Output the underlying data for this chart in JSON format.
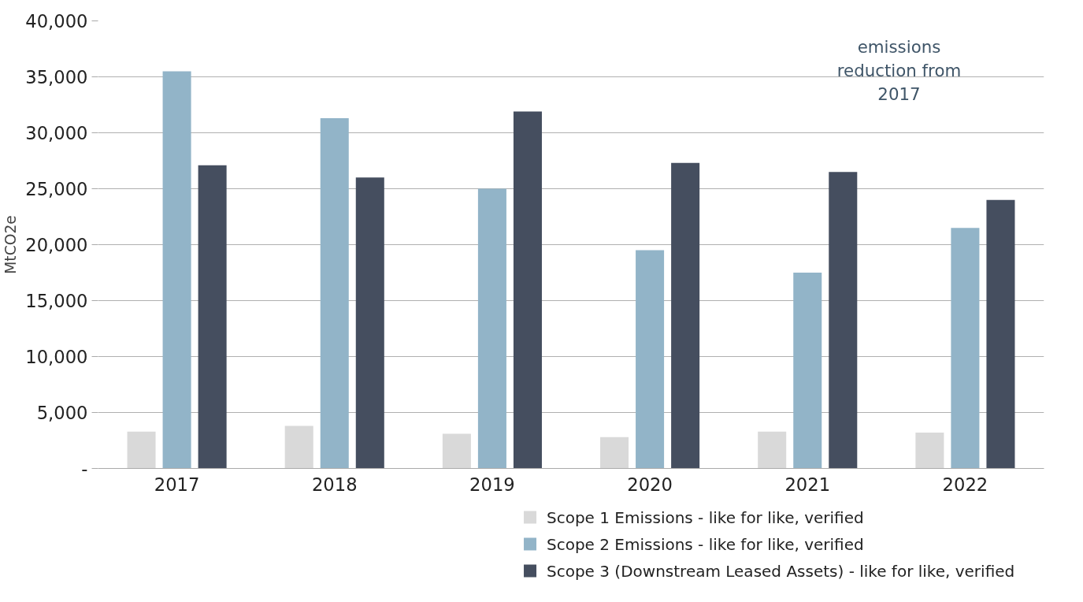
{
  "chart_data": {
    "type": "bar",
    "ylabel": "MtCO2e",
    "categories": [
      "2017",
      "2018",
      "2019",
      "2020",
      "2021",
      "2022"
    ],
    "series": [
      {
        "name": "Scope 1 Emissions - like for like, verified",
        "color": "#d9d9d9",
        "values": [
          3300,
          3800,
          3100,
          2800,
          3300,
          3200
        ]
      },
      {
        "name": "Scope 2 Emissions - like for like, verified",
        "color": "#92b4c8",
        "values": [
          35500,
          31300,
          25000,
          19500,
          17500,
          21500
        ]
      },
      {
        "name": "Scope 3 (Downstream Leased Assets) - like for like, verified",
        "color": "#454e5f",
        "values": [
          27100,
          26000,
          31900,
          27300,
          26500,
          24000
        ]
      }
    ],
    "ylim": [
      0,
      40000
    ],
    "yticks": [
      {
        "value": 0,
        "label": "-"
      },
      {
        "value": 5000,
        "label": "5,000"
      },
      {
        "value": 10000,
        "label": "10,000"
      },
      {
        "value": 15000,
        "label": "15,000"
      },
      {
        "value": 20000,
        "label": "20,000"
      },
      {
        "value": 25000,
        "label": "25,000"
      },
      {
        "value": 30000,
        "label": "30,000"
      },
      {
        "value": 35000,
        "label": "35,000"
      },
      {
        "value": 40000,
        "label": "40,000"
      }
    ],
    "grid": "y",
    "legend": "bottom right",
    "annotations": [
      "emissions\nreduction from\n2017"
    ]
  }
}
